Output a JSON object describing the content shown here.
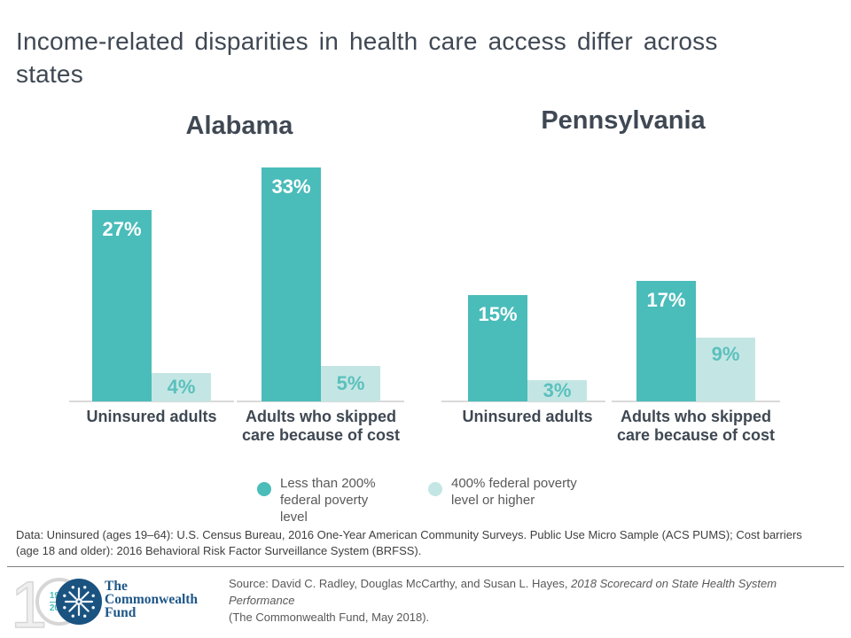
{
  "slide": {
    "title_lines": [
      "Income-related disparities in health care access differ across",
      "states"
    ]
  },
  "chart_data": [
    {
      "type": "bar",
      "title": "Alabama",
      "categories": [
        "Uninsured adults",
        "Adults who skipped care because of cost"
      ],
      "category_label_lines": [
        [
          "Uninsured adults"
        ],
        [
          "Adults who skipped",
          "care because of cost"
        ]
      ],
      "series": [
        {
          "name": "Less than 200% federal poverty level",
          "values": [
            27,
            33
          ],
          "color": "#4ABCBA",
          "label_color": "#FFFFFF"
        },
        {
          "name": "400% federal poverty level or higher",
          "values": [
            4,
            5
          ],
          "color": "#C3E6E4",
          "label_color": "#5BC0BD"
        }
      ],
      "unit": "%",
      "ylim": [
        0,
        35
      ],
      "data_labels": true,
      "grid": false,
      "legend_position": "bottom"
    },
    {
      "type": "bar",
      "title": "Pennsylvania",
      "categories": [
        "Uninsured adults",
        "Adults who skipped care because of cost"
      ],
      "category_label_lines": [
        [
          "Uninsured adults"
        ],
        [
          "Adults who skipped",
          "care because of cost"
        ]
      ],
      "series": [
        {
          "name": "Less than 200% federal poverty level",
          "values": [
            15,
            17
          ],
          "color": "#4ABCBA",
          "label_color": "#FFFFFF"
        },
        {
          "name": "400% federal poverty level or higher",
          "values": [
            3,
            9
          ],
          "color": "#C3E6E4",
          "label_color": "#5BC0BD"
        }
      ],
      "unit": "%",
      "ylim": [
        0,
        35
      ],
      "data_labels": true,
      "grid": false,
      "legend_position": "bottom"
    }
  ],
  "legend": {
    "items": [
      {
        "swatch_color": "#4ABCBA",
        "label_lines": [
          "Less than 200%",
          "federal poverty",
          "level"
        ]
      },
      {
        "swatch_color": "#C3E6E4",
        "label_lines": [
          "400% federal poverty",
          "level or higher"
        ]
      }
    ]
  },
  "note_lines": [
    "Data: Uninsured (ages 19–64): U.S. Census Bureau, 2016 One-Year American Community Surveys. Public Use Micro Sample (ACS PUMS); Cost barriers",
    "(age 18 and older): 2016 Behavioral Risk Factor Surveillance System (BRFSS)."
  ],
  "source": {
    "prefix": "Source: David C. Radley, Douglas McCarthy, and Susan L. Hayes, ",
    "title_italic_line1": "2018 Scorecard on State Health System",
    "title_italic_line2": "Performance",
    "suffix": "(The Commonwealth Fund, May 2018)."
  },
  "logo": {
    "centennial_digit": "1",
    "years": [
      "1918",
      "2018"
    ],
    "org_lines": [
      "The",
      "Commonwealth",
      "Fund"
    ]
  },
  "colors": {
    "bar_dark_teal": "#4ABCBA",
    "bar_light_teal": "#C3E6E4",
    "light_bar_label_teal": "#5BC0BD",
    "heading_text": "#3F4853",
    "body_gray": "#595959",
    "note_gray": "#3E3E3E",
    "axis_gray": "#DADADA",
    "logo_navy": "#1A5380"
  }
}
